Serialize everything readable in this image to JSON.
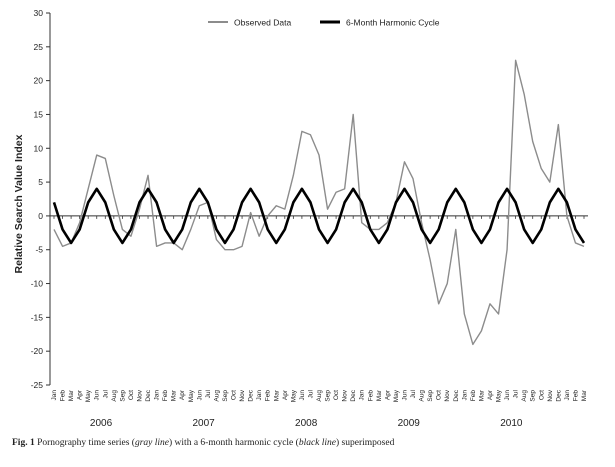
{
  "chart_data": {
    "type": "line",
    "ylabel": "Relative Search Value Index",
    "ylim": [
      -25,
      30
    ],
    "yticks": [
      30,
      25,
      20,
      15,
      10,
      5,
      0,
      -5,
      -10,
      -15,
      -20,
      -25
    ],
    "grid": false,
    "legend_position": "top",
    "x_month_labels": [
      "Jan",
      "Feb",
      "Mar",
      "Apr",
      "May",
      "Jun",
      "Jul",
      "Aug",
      "Sep",
      "Oct",
      "Nov",
      "Dec",
      "Jan",
      "Feb",
      "Mar",
      "Apr",
      "May",
      "Jun",
      "Jul",
      "Aug",
      "Sep",
      "Oct",
      "Nov",
      "Dec",
      "Jan",
      "Feb",
      "Mar",
      "Apr",
      "May",
      "Jun",
      "Jul",
      "Aug",
      "Sep",
      "Oct",
      "Nov",
      "Dec",
      "Jan",
      "Feb",
      "Mar",
      "Apr",
      "May",
      "Jun",
      "Jul",
      "Aug",
      "Sep",
      "Oct",
      "Nov",
      "Dec",
      "Jan",
      "Feb",
      "Mar",
      "Apr",
      "May",
      "Jun",
      "Jul",
      "Aug",
      "Sep",
      "Oct",
      "Nov",
      "Dec",
      "Jan",
      "Feb",
      "Mar"
    ],
    "year_labels": [
      "2006",
      "2007",
      "2008",
      "2009",
      "2010"
    ],
    "series": [
      {
        "name": "Observed Data",
        "color": "#8c8c8c",
        "values": [
          -2,
          -4.5,
          -4,
          -1,
          4,
          9,
          8.5,
          3,
          -2,
          -3,
          1,
          6,
          -4.5,
          -4,
          -4,
          -5,
          -2,
          1.5,
          2,
          -3.5,
          -5,
          -5,
          -4.5,
          0.5,
          -3,
          0,
          1.5,
          1,
          6,
          12.5,
          12,
          9,
          1,
          3.5,
          4,
          15,
          -1,
          -2,
          -2,
          -1,
          2,
          8,
          5.5,
          -1,
          -6.5,
          -13,
          -10,
          -2,
          -14.5,
          -19,
          -17,
          -13,
          -14.5,
          -5,
          23,
          18,
          11,
          7,
          5,
          13.5,
          0,
          -4,
          -4.5
        ]
      },
      {
        "name": "6-Month Harmonic Cycle",
        "color": "#000000",
        "amplitude": 4,
        "period_months": 6,
        "values": []
      }
    ]
  },
  "caption": {
    "label": "Fig. 1",
    "text": "Pornography time series (gray line) with a 6-month harmonic cycle (black line) superimposed"
  }
}
